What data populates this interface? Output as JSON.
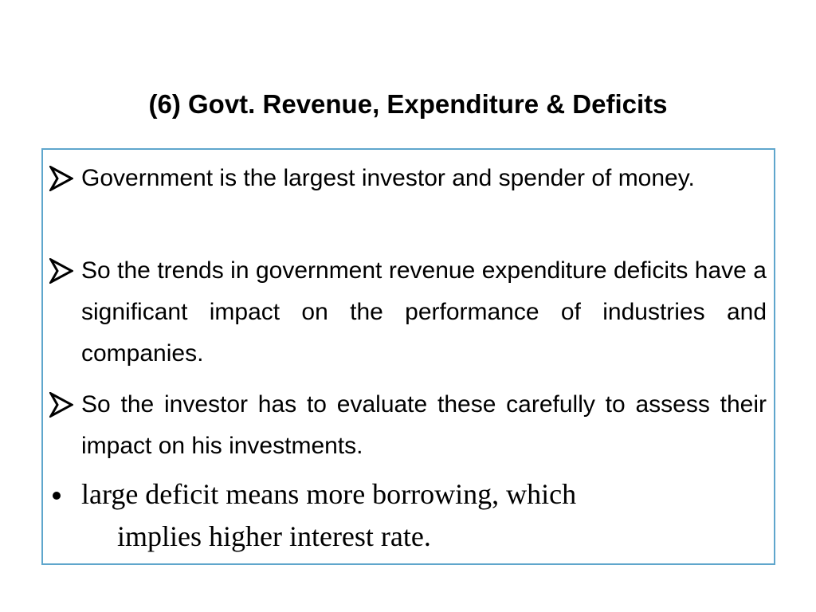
{
  "title": "(6) Govt. Revenue, Expenditure & Deficits",
  "bullets": [
    {
      "text": "Government is the largest investor and spender of money."
    },
    {
      "text": "So the trends in government revenue expenditure deficits have a significant impact on the performance of industries and companies."
    },
    {
      "text": "So the investor has to evaluate these carefully to assess their impact on his investments."
    },
    {
      "lines": [
        "large deficit means more borrowing, which",
        "implies higher interest rate."
      ]
    }
  ]
}
